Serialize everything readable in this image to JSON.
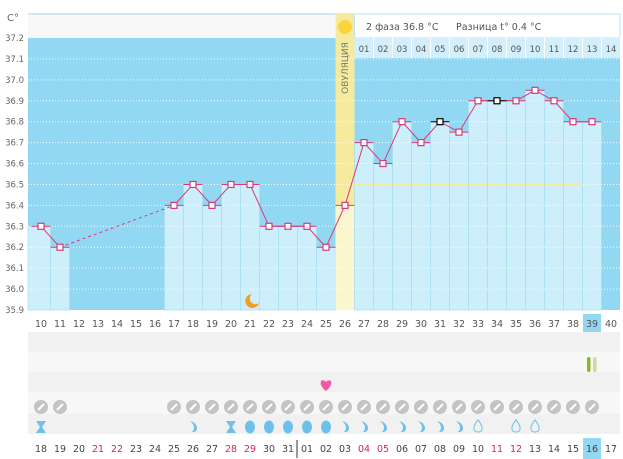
{
  "chart_data": {
    "type": "line",
    "title": "",
    "ylabel": "C°",
    "ylim": [
      35.9,
      37.2
    ],
    "yticks": [
      "37.2",
      "37.1",
      "37.0",
      "36.9",
      "36.8",
      "36.7",
      "36.6",
      "36.5",
      "36.4",
      "36.3",
      "36.2",
      "36.1",
      "36.0",
      "35.9"
    ],
    "cycle_days": [
      10,
      11,
      12,
      13,
      14,
      15,
      16,
      17,
      18,
      19,
      20,
      21,
      22,
      23,
      24,
      25,
      26,
      27,
      28,
      29,
      30,
      31,
      32,
      33,
      34,
      35,
      36,
      37,
      38,
      39,
      40
    ],
    "x_tick_labels": [
      "10",
      "11",
      "12",
      "13",
      "14",
      "15",
      "16",
      "17",
      "18",
      "19",
      "20",
      "21",
      "22",
      "23",
      "24",
      "25",
      "26",
      "27",
      "28",
      "29",
      "30",
      "31",
      "32",
      "33",
      "34",
      "35",
      "36",
      "37",
      "38",
      "39",
      "40"
    ],
    "temperatures": [
      36.3,
      36.2,
      null,
      null,
      null,
      null,
      null,
      36.4,
      36.5,
      36.4,
      36.5,
      36.5,
      36.3,
      36.3,
      36.3,
      36.2,
      36.4,
      36.7,
      36.6,
      36.8,
      36.7,
      36.8,
      36.75,
      36.9,
      36.9,
      36.9,
      36.95,
      36.9,
      36.8,
      36.8,
      null
    ],
    "special_points": [
      31,
      34
    ],
    "missing_range_dashed": [
      11,
      17
    ],
    "cover_line": 36.5,
    "ovulation_day": 26,
    "ovulation_label": "ОВУЛЯЦИЯ",
    "current_day": 39,
    "phase2_header": "2 фаза 36.8 °C",
    "difference_header": "Разница t° 0.4 °C",
    "phase2_day_labels": [
      "01",
      "02",
      "03",
      "04",
      "05",
      "06",
      "07",
      "08",
      "09",
      "10",
      "11",
      "12",
      "13",
      "14"
    ],
    "moon_day": 21,
    "heart_day": 25,
    "test_day": 39,
    "pill_days": [
      10,
      11,
      17,
      18,
      19,
      20,
      21,
      22,
      23,
      24,
      25,
      26,
      27,
      28,
      29,
      30,
      31,
      32,
      33,
      34,
      35,
      36,
      37,
      38,
      39
    ],
    "discharge": [
      {
        "day": 10,
        "kind": "hourglass"
      },
      {
        "day": 18,
        "kind": "crescent"
      },
      {
        "day": 20,
        "kind": "hourglass"
      },
      {
        "day": 21,
        "kind": "full"
      },
      {
        "day": 22,
        "kind": "full"
      },
      {
        "day": 23,
        "kind": "full"
      },
      {
        "day": 24,
        "kind": "full"
      },
      {
        "day": 25,
        "kind": "full"
      },
      {
        "day": 26,
        "kind": "crescent"
      },
      {
        "day": 27,
        "kind": "crescent"
      },
      {
        "day": 28,
        "kind": "crescent"
      },
      {
        "day": 29,
        "kind": "crescent"
      },
      {
        "day": 30,
        "kind": "crescent"
      },
      {
        "day": 31,
        "kind": "crescent"
      },
      {
        "day": 32,
        "kind": "crescent"
      },
      {
        "day": 33,
        "kind": "outline"
      },
      {
        "day": 35,
        "kind": "outline"
      },
      {
        "day": 36,
        "kind": "outline"
      }
    ],
    "calendar_dates": [
      "18",
      "19",
      "20",
      "21",
      "22",
      "23",
      "24",
      "25",
      "26",
      "27",
      "28",
      "29",
      "30",
      "31",
      "01",
      "02",
      "03",
      "04",
      "05",
      "06",
      "07",
      "08",
      "09",
      "10",
      "11",
      "12",
      "13",
      "14",
      "15",
      "16",
      "17"
    ],
    "weekend_dates_idx": [
      3,
      4,
      10,
      11,
      17,
      18,
      24,
      25
    ],
    "month_break_idx": 14,
    "colors": {
      "bg": "#93d8f2",
      "bar": "#cdeefb",
      "line": "#d63a7a",
      "ovulation": "#f6eb9c",
      "ovulation_light": "#fcf6cf",
      "cover": "#f0eca0",
      "weekend": "#d6245c",
      "highlight": "#93d8f2",
      "pill": "#c4c4c4",
      "drop": "#6cc0ec",
      "heart": "#f25aa8",
      "sun": "#fbd43c",
      "moon": "#f0a020",
      "test_on": "#8ab52a",
      "test_off": "#c9dc9a"
    }
  }
}
